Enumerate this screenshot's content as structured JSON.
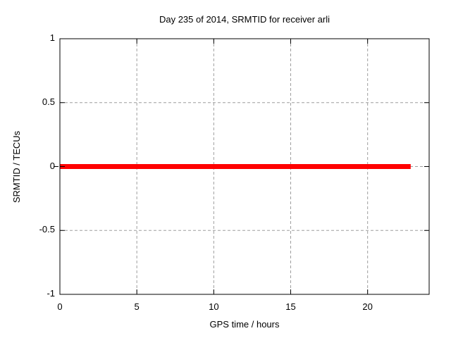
{
  "chart_data": {
    "type": "line",
    "title": "Day 235 of 2014, SRMTID for receiver arli",
    "xlabel": "GPS time / hours",
    "ylabel": "SRMTID / TECUs",
    "xlim": [
      0,
      24
    ],
    "ylim": [
      -1,
      1
    ],
    "xticks": [
      0,
      5,
      10,
      15,
      20
    ],
    "yticks": [
      -1,
      -0.5,
      0,
      0.5,
      1
    ],
    "grid": true,
    "legend": "none",
    "colors": {
      "line": "#ff0000",
      "grid": "#9e9e9e",
      "axis": "#000000",
      "background": "#ffffff"
    },
    "series": [
      {
        "name": "SRMTID",
        "color": "#ff0000",
        "line_width": 7,
        "x": [
          0,
          22.8
        ],
        "y": [
          0,
          0
        ]
      }
    ]
  }
}
